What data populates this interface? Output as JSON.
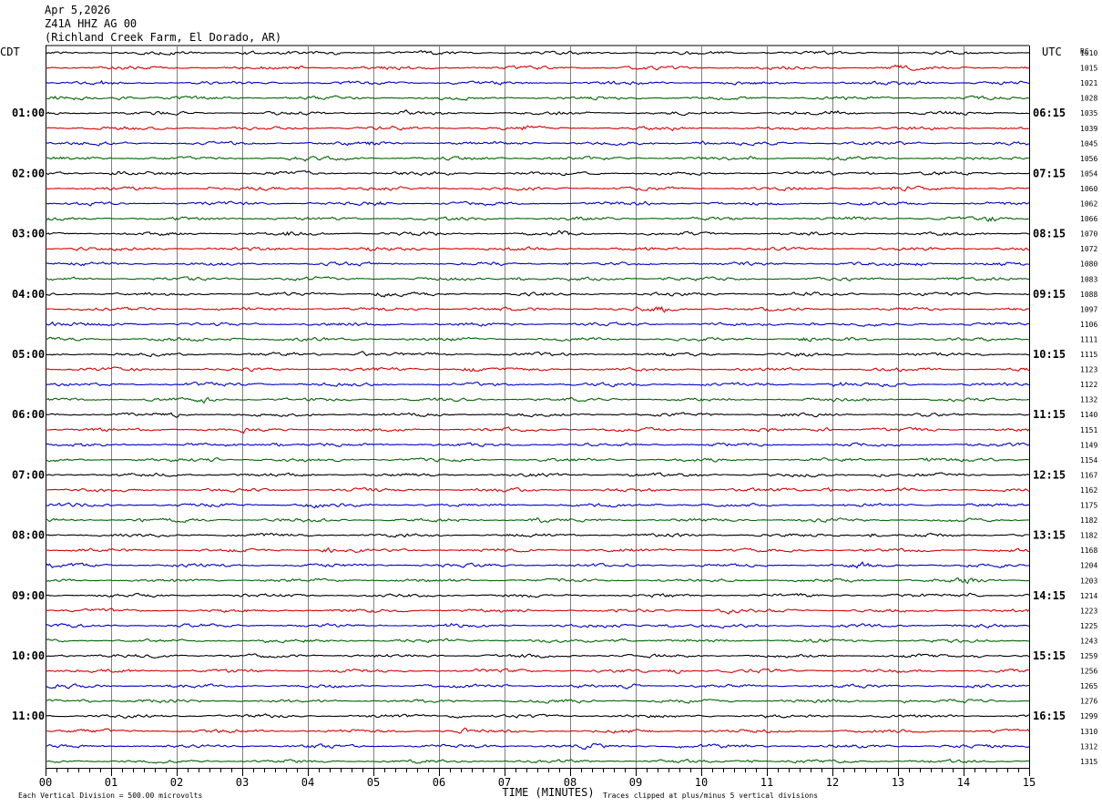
{
  "header": {
    "date": "Apr 5,2026",
    "station": "Z41A HHZ AG 00",
    "location": "(Richland Creek Farm, El Dorado, AR)"
  },
  "colors": {
    "trace_cycle": [
      "#000000",
      "#d40000",
      "#0000c8",
      "#006400"
    ],
    "grid": "#808080"
  },
  "chart_data": {
    "type": "line",
    "title": "Apr 5,2026 Z41A HHZ AG 00 (Richland Creek Farm, El Dorado, AR)",
    "left_axis_title": "CDT",
    "right_axis_title": "UTC",
    "rc_header": "RC",
    "xlabel": "TIME (MINUTES)",
    "x_ticks": [
      "00",
      "01",
      "02",
      "03",
      "04",
      "05",
      "06",
      "07",
      "08",
      "09",
      "10",
      "11",
      "12",
      "13",
      "14",
      "15"
    ],
    "xlim": [
      0,
      15
    ],
    "grid": true,
    "traces_per_hour": 4,
    "cdt_hours": [
      "01:00",
      "02:00",
      "03:00",
      "04:00",
      "05:00",
      "06:00",
      "07:00",
      "08:00",
      "09:00",
      "10:00",
      "11:00"
    ],
    "utc_hours": [
      "06:15",
      "07:15",
      "08:15",
      "09:15",
      "10:15",
      "11:15",
      "12:15",
      "13:15",
      "14:15",
      "15:15",
      "16:15"
    ],
    "rc_values": [
      1010,
      1015,
      1021,
      1028,
      1035,
      1039,
      1045,
      1056,
      1054,
      1060,
      1062,
      1066,
      1070,
      1072,
      1080,
      1083,
      1088,
      1097,
      1106,
      1111,
      1115,
      1123,
      1122,
      1132,
      1140,
      1151,
      1149,
      1154,
      1167,
      1162,
      1175,
      1182,
      1182,
      1168,
      1204,
      1203,
      1214,
      1223,
      1225,
      1243,
      1259,
      1256,
      1265,
      1276,
      1299,
      1310,
      1312,
      1315
    ],
    "footer_left": "Each Vertical Division =  500.00 microvolts",
    "footer_right": "Traces clipped at plus/minus 5 vertical divisions"
  }
}
